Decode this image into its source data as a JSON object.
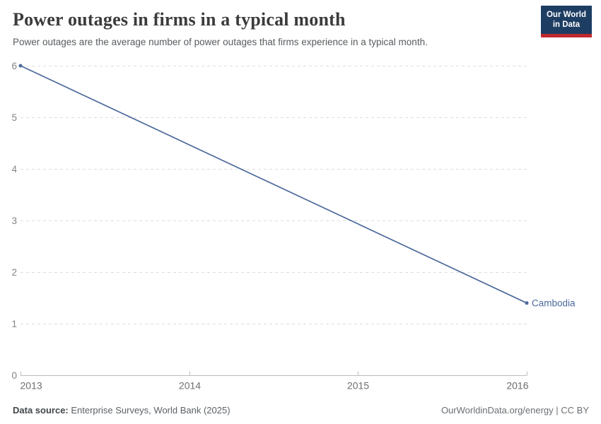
{
  "header": {
    "title": "Power outages in firms in a typical month",
    "subtitle": "Power outages are the average number of power outages that firms experience in a typical month.",
    "logo": {
      "line1": "Our World",
      "line2": "in Data"
    }
  },
  "chart_data": {
    "type": "line",
    "title": "Power outages in firms in a typical month",
    "series": [
      {
        "name": "Cambodia",
        "x": [
          2013,
          2016
        ],
        "values": [
          6,
          1.4
        ],
        "color": "#4C6A9C"
      }
    ],
    "entity_label": "Cambodia",
    "x_ticks": [
      2013,
      2014,
      2015,
      2016
    ],
    "y_ticks": [
      0,
      1,
      2,
      3,
      4,
      5,
      6
    ],
    "xlim": [
      2013,
      2016
    ],
    "ylim": [
      0,
      6
    ],
    "xlabel": "",
    "ylabel": "",
    "grid": "horizontal-dashed",
    "legend_position": "end-of-line-label",
    "markers": "endpoints"
  },
  "footer": {
    "source_label": "Data source:",
    "source_text": " Enterprise Surveys, World Bank (2025)",
    "credit": "OurWorldinData.org/energy | CC BY"
  },
  "colors": {
    "line": "#4C6A9C",
    "grid": "#dcdcdc",
    "axis": "#bcbcbc",
    "y_tick_text": "#848484",
    "x_tick_text": "#6e6e6e",
    "logo_bg": "#1d3d63",
    "logo_red": "#c0292e"
  }
}
